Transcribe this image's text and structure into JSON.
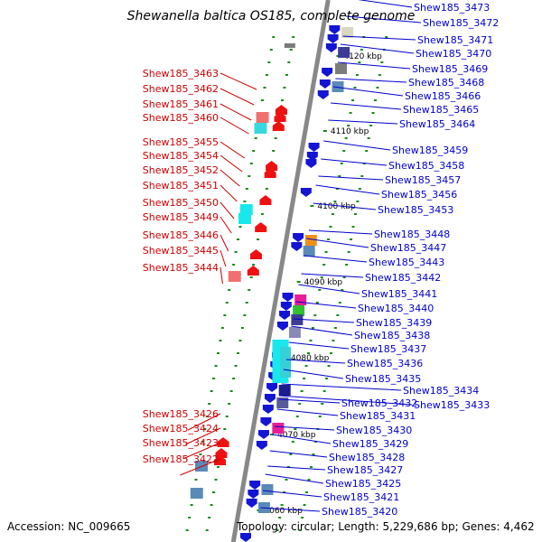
{
  "title": "Shewanella baltica OS185, complete genome",
  "accession": "Accession: NC_009665",
  "topology": "Topology: circular; Length: 5,229,686 bp; Genes: 4,462",
  "colors": {
    "left_labels": "#cc0000",
    "right_labels": "#0000cc",
    "axis": "#888888",
    "dots": "#1a8a1a"
  },
  "kbp_ticks": [
    "4120 kbp",
    "4110 kbp",
    "4100 kbp",
    "4090 kbp",
    "4080 kbp",
    "4070 kbp",
    "4060 kbp"
  ],
  "left_genes": [
    "Shew185_3463",
    "Shew185_3462",
    "Shew185_3461",
    "Shew185_3460",
    "Shew185_3455",
    "Shew185_3454",
    "Shew185_3452",
    "Shew185_3451",
    "Shew185_3450",
    "Shew185_3449",
    "Shew185_3446",
    "Shew185_3445",
    "Shew185_3444",
    "Shew185_3426",
    "Shew185_3424",
    "Shew185_3423",
    "Shew185_3422"
  ],
  "right_genes": [
    "Shew185_3473",
    "Shew185_3472",
    "Shew185_3471",
    "Shew185_3470",
    "Shew185_3469",
    "Shew185_3468",
    "Shew185_3466",
    "Shew185_3465",
    "Shew185_3464",
    "Shew185_3459",
    "Shew185_3458",
    "Shew185_3457",
    "Shew185_3456",
    "Shew185_3453",
    "Shew185_3448",
    "Shew185_3447",
    "Shew185_3443",
    "Shew185_3442",
    "Shew185_3441",
    "Shew185_3440",
    "Shew185_3439",
    "Shew185_3438",
    "Shew185_3437",
    "Shew185_3436",
    "Shew185_3435",
    "Shew185_3434",
    "Shew185_3432",
    "Shew185_3433",
    "Shew185_3431",
    "Shew185_3430",
    "Shew185_3429",
    "Shew185_3428",
    "Shew185_3427",
    "Shew185_3425",
    "Shew185_3421",
    "Shew185_3420"
  ]
}
